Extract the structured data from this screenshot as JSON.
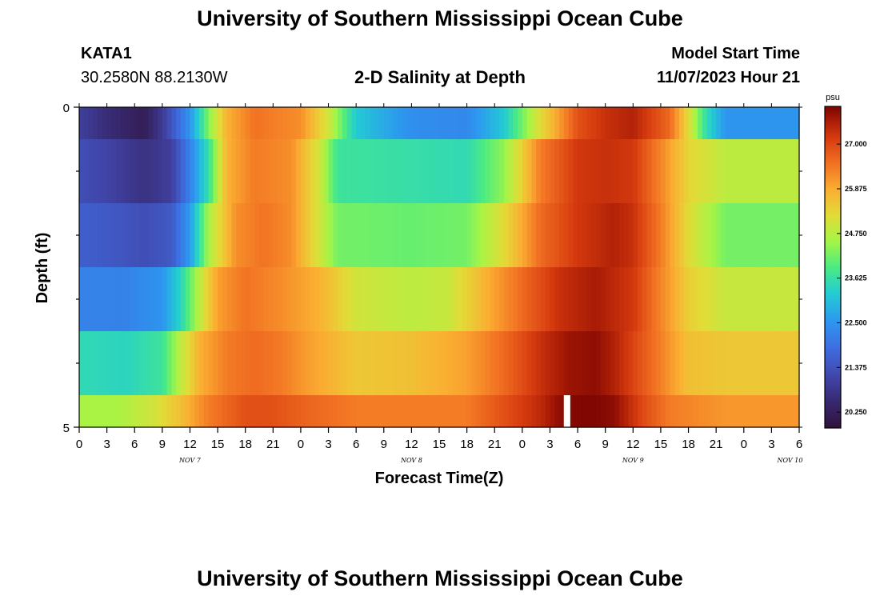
{
  "header": {
    "title": "University of Southern Mississippi Ocean Cube",
    "station": "KATA1",
    "coords": "30.2580N  88.2130W",
    "subtitle": "2-D Salinity at Depth",
    "start_label": "Model Start Time",
    "start_value": "11/07/2023 Hour 21"
  },
  "footer": {
    "title": "University of Southern Mississippi Ocean Cube"
  },
  "chart_data": {
    "type": "heatmap",
    "title": "2-D Salinity at Depth",
    "xlabel": "Forecast Time(Z)",
    "ylabel": "Depth (ft)",
    "x_tick_labels": [
      "0",
      "3",
      "6",
      "9",
      "12",
      "15",
      "18",
      "21",
      "0",
      "3",
      "6",
      "9",
      "12",
      "15",
      "18",
      "21",
      "0",
      "3",
      "6",
      "9",
      "12",
      "15",
      "18",
      "21",
      "0",
      "3",
      "6"
    ],
    "x_range_hours": [
      0,
      78
    ],
    "date_labels": [
      {
        "label": "NOV 7",
        "hour": 12
      },
      {
        "label": "NOV 8",
        "hour": 36
      },
      {
        "label": "NOV 9",
        "hour": 60
      },
      {
        "label": "NOV 10",
        "hour": 77
      }
    ],
    "y_tick_labels": [
      "0",
      "5"
    ],
    "y_range_ft": [
      0,
      5
    ],
    "colorbar": {
      "unit": "psu",
      "range": [
        19.85,
        27.95
      ],
      "ticks": [
        "27.000",
        "25.875",
        "24.750",
        "23.625",
        "22.500",
        "21.375",
        "20.250"
      ],
      "tick_values": [
        27.0,
        25.875,
        24.75,
        23.625,
        22.5,
        21.375,
        20.25
      ]
    },
    "layers": [
      {
        "depth_range_ft": [
          0.0,
          0.5
        ],
        "knots": [
          [
            0,
            21.0
          ],
          [
            3,
            20.6
          ],
          [
            7,
            20.2
          ],
          [
            9,
            20.9
          ],
          [
            12,
            22.5
          ],
          [
            14,
            24.3
          ],
          [
            16,
            25.8
          ],
          [
            19,
            26.5
          ],
          [
            24,
            26.2
          ],
          [
            27,
            25.0
          ],
          [
            30,
            23.2
          ],
          [
            36,
            22.4
          ],
          [
            42,
            22.3
          ],
          [
            46,
            23.2
          ],
          [
            50,
            25.2
          ],
          [
            54,
            26.9
          ],
          [
            57,
            27.3
          ],
          [
            60,
            27.5
          ],
          [
            64,
            26.6
          ],
          [
            66,
            25.2
          ],
          [
            68,
            23.5
          ],
          [
            70,
            22.5
          ],
          [
            78,
            22.5
          ]
        ]
      },
      {
        "depth_range_ft": [
          0.5,
          1.5
        ],
        "knots": [
          [
            0,
            21.3
          ],
          [
            3,
            21.1
          ],
          [
            7,
            20.7
          ],
          [
            10,
            21.0
          ],
          [
            12,
            22.2
          ],
          [
            14,
            23.6
          ],
          [
            16,
            25.8
          ],
          [
            19,
            26.4
          ],
          [
            23,
            26.2
          ],
          [
            26,
            25.0
          ],
          [
            28,
            23.7
          ],
          [
            36,
            23.6
          ],
          [
            42,
            23.5
          ],
          [
            46,
            24.4
          ],
          [
            50,
            26.4
          ],
          [
            54,
            27.2
          ],
          [
            57,
            27.3
          ],
          [
            60,
            27.2
          ],
          [
            63,
            26.3
          ],
          [
            66,
            25.3
          ],
          [
            70,
            24.8
          ],
          [
            78,
            24.8
          ]
        ]
      },
      {
        "depth_range_ft": [
          1.5,
          2.5
        ],
        "knots": [
          [
            0,
            21.6
          ],
          [
            3,
            21.5
          ],
          [
            7,
            21.3
          ],
          [
            10,
            21.5
          ],
          [
            12,
            22.6
          ],
          [
            14,
            24.6
          ],
          [
            17,
            26.2
          ],
          [
            20,
            26.5
          ],
          [
            23,
            26.2
          ],
          [
            26,
            25.0
          ],
          [
            28,
            24.2
          ],
          [
            36,
            24.1
          ],
          [
            42,
            24.2
          ],
          [
            46,
            25.2
          ],
          [
            50,
            26.6
          ],
          [
            54,
            27.2
          ],
          [
            58,
            27.5
          ],
          [
            60,
            27.3
          ],
          [
            63,
            26.4
          ],
          [
            66,
            25.2
          ],
          [
            70,
            24.2
          ],
          [
            78,
            24.2
          ]
        ]
      },
      {
        "depth_range_ft": [
          2.5,
          3.5
        ],
        "knots": [
          [
            0,
            22.2
          ],
          [
            5,
            22.2
          ],
          [
            9,
            22.5
          ],
          [
            11,
            23.4
          ],
          [
            13,
            24.8
          ],
          [
            15,
            26.0
          ],
          [
            18,
            26.5
          ],
          [
            22,
            26.2
          ],
          [
            26,
            25.8
          ],
          [
            30,
            25.0
          ],
          [
            36,
            24.8
          ],
          [
            40,
            24.9
          ],
          [
            44,
            25.8
          ],
          [
            48,
            26.6
          ],
          [
            52,
            27.3
          ],
          [
            56,
            27.6
          ],
          [
            60,
            27.2
          ],
          [
            63,
            26.3
          ],
          [
            66,
            25.4
          ],
          [
            70,
            24.9
          ],
          [
            78,
            24.9
          ]
        ]
      },
      {
        "depth_range_ft": [
          3.5,
          4.5
        ],
        "knots": [
          [
            0,
            23.5
          ],
          [
            5,
            23.4
          ],
          [
            9,
            23.7
          ],
          [
            11,
            24.8
          ],
          [
            13,
            25.8
          ],
          [
            16,
            26.4
          ],
          [
            19,
            26.6
          ],
          [
            22,
            26.4
          ],
          [
            25,
            26.0
          ],
          [
            30,
            25.5
          ],
          [
            36,
            25.6
          ],
          [
            42,
            26.0
          ],
          [
            46,
            26.6
          ],
          [
            50,
            27.3
          ],
          [
            53,
            27.7
          ],
          [
            56,
            27.8
          ],
          [
            58,
            27.5
          ],
          [
            62,
            26.6
          ],
          [
            66,
            25.6
          ],
          [
            70,
            25.5
          ],
          [
            78,
            25.5
          ]
        ]
      },
      {
        "depth_range_ft": [
          4.5,
          5.0
        ],
        "knots": [
          [
            0,
            24.6
          ],
          [
            4,
            24.6
          ],
          [
            8,
            25.0
          ],
          [
            11,
            25.6
          ],
          [
            14,
            26.4
          ],
          [
            18,
            26.9
          ],
          [
            21,
            26.9
          ],
          [
            24,
            26.7
          ],
          [
            30,
            26.4
          ],
          [
            36,
            26.4
          ],
          [
            42,
            26.4
          ],
          [
            46,
            26.9
          ],
          [
            50,
            27.4
          ],
          [
            52,
            27.8
          ],
          [
            54,
            27.9
          ],
          [
            56,
            27.9
          ],
          [
            58,
            27.8
          ],
          [
            61,
            27.0
          ],
          [
            64,
            26.4
          ],
          [
            70,
            26.1
          ],
          [
            78,
            26.1
          ]
        ]
      }
    ],
    "missing_cells": [
      {
        "depth_range_ft": [
          4.5,
          5.0
        ],
        "hour_range": [
          52.5,
          53.2
        ]
      }
    ]
  }
}
